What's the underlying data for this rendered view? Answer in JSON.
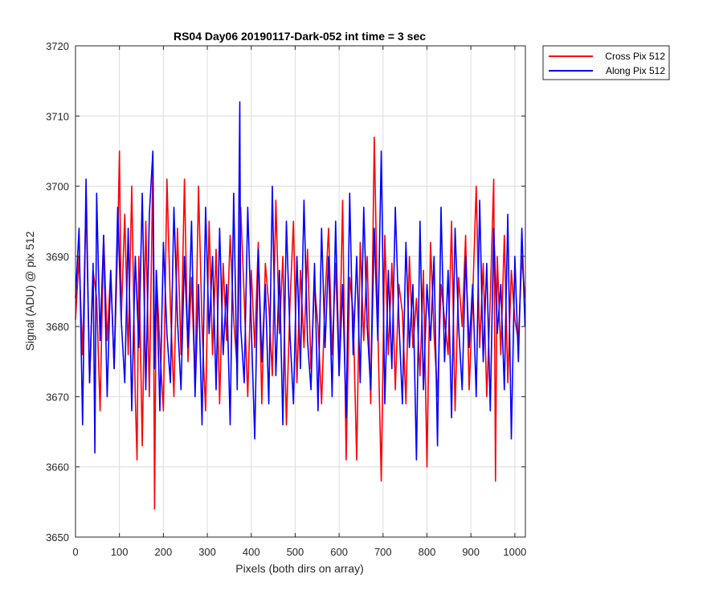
{
  "chart_data": {
    "type": "line",
    "title": "RS04 Day06 20190117-Dark-052 int time = 3 sec",
    "xlabel": "Pixels (both dirs on array)",
    "ylabel": "Signal (ADU) @ pix 512",
    "xlim": [
      0,
      1024
    ],
    "ylim": [
      3650,
      3720
    ],
    "xticks": [
      0,
      100,
      200,
      300,
      400,
      500,
      600,
      700,
      800,
      900,
      1000
    ],
    "yticks": [
      3650,
      3660,
      3670,
      3680,
      3690,
      3700,
      3710,
      3720
    ],
    "grid": true,
    "legend_position": "outside-top-right",
    "series": [
      {
        "name": "Cross Pix 512",
        "color": "#ff0000",
        "x": [
          0,
          8,
          16,
          24,
          32,
          40,
          48,
          56,
          64,
          72,
          80,
          88,
          96,
          100,
          104,
          112,
          120,
          128,
          136,
          140,
          144,
          152,
          160,
          168,
          176,
          180,
          184,
          192,
          200,
          208,
          216,
          224,
          232,
          240,
          248,
          256,
          264,
          272,
          280,
          288,
          296,
          304,
          312,
          320,
          328,
          336,
          344,
          352,
          360,
          368,
          376,
          384,
          392,
          400,
          408,
          416,
          424,
          432,
          440,
          448,
          456,
          464,
          472,
          480,
          488,
          496,
          504,
          512,
          520,
          528,
          536,
          544,
          552,
          560,
          568,
          576,
          584,
          592,
          600,
          608,
          616,
          624,
          632,
          640,
          648,
          656,
          664,
          672,
          680,
          688,
          696,
          704,
          712,
          720,
          728,
          736,
          744,
          752,
          760,
          768,
          776,
          784,
          792,
          800,
          808,
          816,
          824,
          832,
          840,
          848,
          856,
          864,
          872,
          880,
          888,
          896,
          904,
          912,
          920,
          928,
          936,
          944,
          952,
          956,
          960,
          968,
          976,
          984,
          992,
          1000,
          1008,
          1016,
          1023
        ],
        "values": [
          3681,
          3690,
          3676,
          3698,
          3672,
          3688,
          3684,
          3668,
          3693,
          3678,
          3688,
          3674,
          3692,
          3705,
          3681,
          3696,
          3676,
          3700,
          3670,
          3661,
          3690,
          3663,
          3695,
          3670,
          3703,
          3654,
          3688,
          3677,
          3668,
          3701,
          3683,
          3670,
          3694,
          3676,
          3701,
          3675,
          3687,
          3672,
          3700,
          3680,
          3668,
          3695,
          3676,
          3691,
          3669,
          3689,
          3678,
          3693,
          3681,
          3674,
          3697,
          3684,
          3670,
          3688,
          3677,
          3692,
          3669,
          3689,
          3683,
          3673,
          3698,
          3679,
          3690,
          3666,
          3683,
          3695,
          3672,
          3688,
          3677,
          3691,
          3674,
          3686,
          3680,
          3669,
          3684,
          3694,
          3676,
          3689,
          3673,
          3698,
          3661,
          3687,
          3682,
          3661,
          3692,
          3678,
          3690,
          3669,
          3707,
          3680,
          3658,
          3693,
          3676,
          3689,
          3671,
          3686,
          3682,
          3669,
          3690,
          3677,
          3684,
          3673,
          3688,
          3660,
          3692,
          3679,
          3670,
          3686,
          3681,
          3676,
          3695,
          3668,
          3687,
          3680,
          3693,
          3671,
          3684,
          3700,
          3677,
          3689,
          3670,
          3684,
          3701,
          3658,
          3690,
          3676,
          3693,
          3672,
          3688,
          3681,
          3678,
          3690,
          3684
        ],
        "note_key_range": "approx 3654 to 3707"
      },
      {
        "name": "Along Pix 512",
        "color": "#0000ff",
        "x": [
          0,
          8,
          16,
          24,
          32,
          40,
          44,
          48,
          56,
          64,
          72,
          80,
          88,
          96,
          104,
          112,
          120,
          128,
          136,
          144,
          152,
          160,
          168,
          176,
          180,
          184,
          192,
          200,
          208,
          216,
          224,
          232,
          240,
          248,
          256,
          264,
          272,
          280,
          288,
          296,
          304,
          312,
          320,
          328,
          336,
          344,
          352,
          360,
          368,
          374,
          376,
          384,
          392,
          400,
          408,
          416,
          424,
          432,
          440,
          448,
          456,
          464,
          472,
          480,
          488,
          496,
          504,
          512,
          520,
          528,
          536,
          544,
          552,
          560,
          568,
          576,
          584,
          592,
          600,
          608,
          616,
          624,
          632,
          640,
          648,
          656,
          664,
          672,
          680,
          688,
          696,
          704,
          712,
          720,
          728,
          736,
          744,
          752,
          760,
          768,
          776,
          784,
          792,
          800,
          808,
          816,
          824,
          832,
          840,
          848,
          856,
          864,
          872,
          880,
          888,
          896,
          904,
          912,
          920,
          928,
          936,
          944,
          952,
          960,
          968,
          976,
          984,
          992,
          1000,
          1008,
          1016,
          1023
        ],
        "values": [
          3684,
          3694,
          3666,
          3701,
          3672,
          3689,
          3662,
          3699,
          3678,
          3693,
          3670,
          3688,
          3674,
          3697,
          3681,
          3672,
          3694,
          3668,
          3690,
          3677,
          3699,
          3671,
          3696,
          3705,
          3674,
          3688,
          3668,
          3692,
          3679,
          3672,
          3697,
          3681,
          3671,
          3690,
          3677,
          3695,
          3670,
          3686,
          3666,
          3697,
          3679,
          3690,
          3671,
          3694,
          3676,
          3686,
          3666,
          3699,
          3671,
          3712,
          3680,
          3672,
          3697,
          3680,
          3664,
          3691,
          3675,
          3686,
          3669,
          3700,
          3673,
          3688,
          3666,
          3695,
          3679,
          3669,
          3690,
          3674,
          3698,
          3678,
          3671,
          3689,
          3668,
          3694,
          3677,
          3690,
          3670,
          3695,
          3673,
          3686,
          3667,
          3699,
          3676,
          3690,
          3672,
          3697,
          3680,
          3671,
          3694,
          3678,
          3705,
          3669,
          3688,
          3674,
          3697,
          3681,
          3669,
          3692,
          3677,
          3686,
          3661,
          3695,
          3671,
          3686,
          3678,
          3690,
          3663,
          3697,
          3675,
          3688,
          3667,
          3694,
          3680,
          3671,
          3690,
          3677,
          3686,
          3670,
          3698,
          3675,
          3689,
          3668,
          3694,
          3679,
          3686,
          3671,
          3696,
          3664,
          3690,
          3675,
          3694,
          3680
        ],
        "note_key_range": "approx 3661 to 3712"
      }
    ]
  }
}
